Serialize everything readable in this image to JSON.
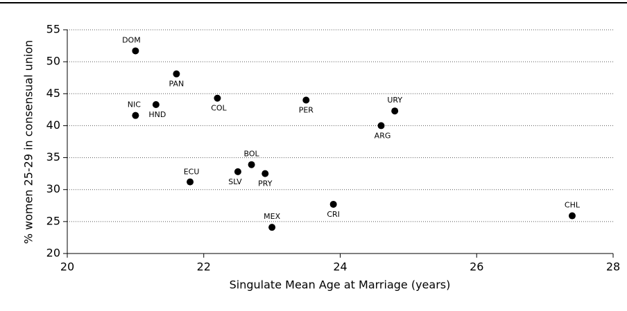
{
  "chart_data": {
    "type": "scatter",
    "xlabel": "Singulate Mean Age at Marriage (years)",
    "ylabel": "% women 25-29 in consensual union",
    "labels": [
      "DOM",
      "PAN",
      "NIC",
      "HND",
      "COL",
      "PER",
      "URY",
      "ARG",
      "BOL",
      "SLV",
      "PRY",
      "ECU",
      "CRI",
      "MEX",
      "CHL"
    ],
    "x": [
      21.0,
      21.6,
      21.0,
      21.3,
      22.2,
      23.5,
      24.8,
      24.6,
      22.7,
      22.5,
      22.9,
      21.8,
      23.9,
      23.0,
      27.4
    ],
    "y": [
      51.7,
      48.1,
      41.6,
      43.3,
      44.3,
      44.0,
      42.3,
      40.0,
      33.9,
      32.8,
      32.5,
      31.2,
      27.7,
      24.1,
      25.9
    ],
    "color": "#000000",
    "xlim": [
      20,
      28
    ],
    "xticks": [
      20,
      22,
      24,
      26,
      28
    ],
    "ylim": [
      20,
      55
    ],
    "yticks": [
      20,
      25,
      30,
      35,
      40,
      45,
      50,
      55
    ],
    "grid": true
  }
}
